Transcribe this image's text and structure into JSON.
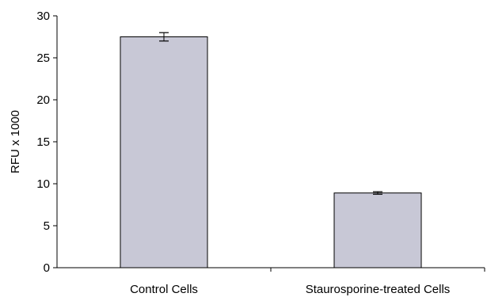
{
  "chart_data": {
    "type": "bar",
    "title": "",
    "xlabel": "",
    "ylabel": "RFU x 1000",
    "categories": [
      "Control Cells",
      "Staurosporine-treated Cells"
    ],
    "values": [
      27.5,
      8.9
    ],
    "errors": [
      0.5,
      0.15
    ],
    "ylim": [
      0,
      30
    ],
    "yticks": [
      0,
      5,
      10,
      15,
      20,
      25,
      30
    ],
    "grid": false,
    "legend": "none",
    "bar_color": "#c8c8d6",
    "bar_edge_color": "#000000"
  }
}
